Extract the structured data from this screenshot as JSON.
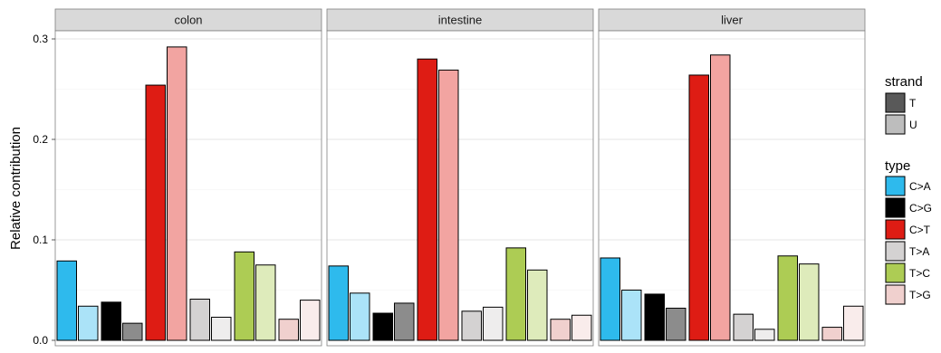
{
  "chart_data": {
    "type": "bar",
    "ylabel": "Relative contribution",
    "ylim": [
      0,
      0.31
    ],
    "yticks": [
      0.0,
      0.1,
      0.2,
      0.3
    ],
    "ytick_labels": [
      "0.0",
      "0.1",
      "0.2",
      "0.3"
    ],
    "grid": true,
    "legend_position": "right",
    "facets": [
      "colon",
      "intestine",
      "liver"
    ],
    "types": [
      "C>A",
      "C>G",
      "C>T",
      "T>A",
      "T>C",
      "T>G"
    ],
    "strands": [
      "T",
      "U"
    ],
    "type_colors": [
      "#2EBAED",
      "#000000",
      "#DE1C14",
      "#D4D2D2",
      "#ADCC54",
      "#F0D0CE"
    ],
    "strand_colors": [
      "#595959",
      "#BDBDBD"
    ],
    "legend": {
      "strand_title": "strand",
      "type_title": "type"
    },
    "series": [
      {
        "name": "T",
        "values": {
          "colon": [
            0.079,
            0.038,
            0.254,
            0.041,
            0.088,
            0.021
          ],
          "intestine": [
            0.074,
            0.027,
            0.28,
            0.029,
            0.092,
            0.021
          ],
          "liver": [
            0.082,
            0.046,
            0.264,
            0.026,
            0.084,
            0.013
          ]
        }
      },
      {
        "name": "U",
        "values": {
          "colon": [
            0.034,
            0.017,
            0.292,
            0.023,
            0.075,
            0.04
          ],
          "intestine": [
            0.047,
            0.037,
            0.269,
            0.033,
            0.07,
            0.025
          ],
          "liver": [
            0.05,
            0.032,
            0.284,
            0.011,
            0.076,
            0.034
          ]
        }
      }
    ]
  }
}
